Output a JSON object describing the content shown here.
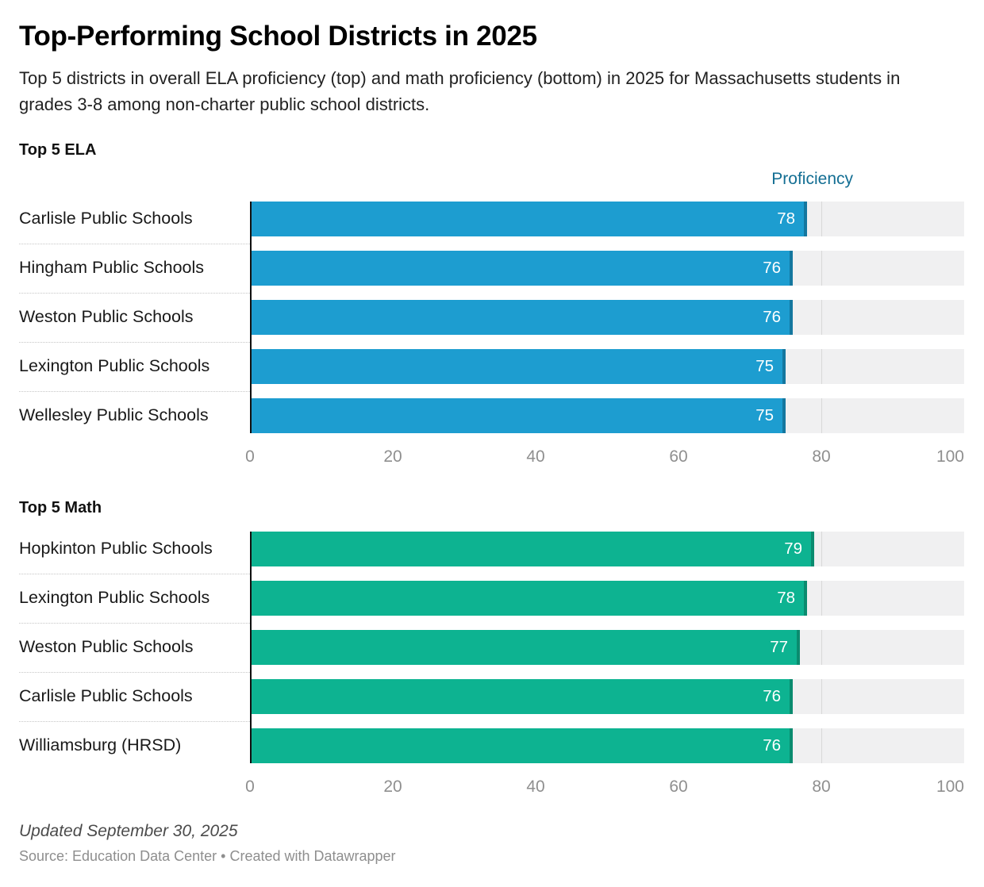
{
  "header": {
    "title": "Top-Performing School Districts in 2025",
    "subtitle": "Top 5 districts in overall ELA proficiency (top) and math proficiency (bottom) in 2025 for Massachusetts students in grades 3-8 among non-charter public school districts."
  },
  "chart_data": [
    {
      "type": "bar",
      "orientation": "horizontal",
      "title": "Top 5 ELA",
      "column_header": "Proficiency",
      "categories": [
        "Carlisle Public Schools",
        "Hingham Public Schools",
        "Weston Public Schools",
        "Lexington Public Schools",
        "Wellesley Public Schools"
      ],
      "values": [
        78,
        76,
        76,
        75,
        75
      ],
      "xlabel": "",
      "ylabel": "",
      "xlim": [
        0,
        100
      ],
      "xticks": [
        0,
        20,
        40,
        60,
        80,
        100
      ],
      "grid": true,
      "bar_color": "#1d9dd0",
      "cap_color": "#14779f",
      "value_label_color": "#ffffff"
    },
    {
      "type": "bar",
      "orientation": "horizontal",
      "title": "Top 5 Math",
      "column_header": "",
      "categories": [
        "Hopkinton Public Schools",
        "Lexington Public Schools",
        "Weston Public Schools",
        "Carlisle Public Schools",
        "Williamsburg (HRSD)"
      ],
      "values": [
        79,
        78,
        77,
        76,
        76
      ],
      "xlabel": "",
      "ylabel": "",
      "xlim": [
        0,
        100
      ],
      "xticks": [
        0,
        20,
        40,
        60,
        80,
        100
      ],
      "grid": true,
      "bar_color": "#0db391",
      "cap_color": "#0a8b6f",
      "value_label_color": "#ffffff"
    }
  ],
  "footer": {
    "updated": "Updated September 30, 2025",
    "source": "Source: Education Data Center • Created with Datawrapper"
  },
  "colors": {
    "track": "#f0f0f1",
    "gridline": "#d8d8d8",
    "axis_line": "#101010",
    "tick_label_color": "#8f8f8f",
    "column_header_text": "#136e93"
  }
}
